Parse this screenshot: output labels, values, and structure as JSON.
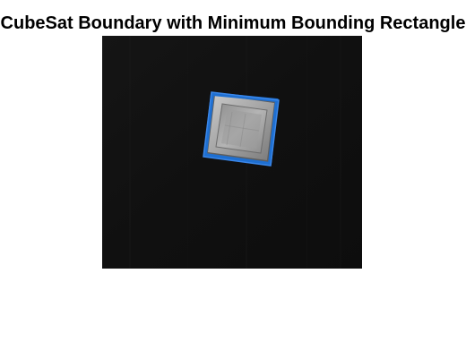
{
  "figure": {
    "title": "CubeSat Boundary with Minimum Bounding Rectangle"
  },
  "image": {
    "subject": "CubeSat",
    "background_color": "#111111",
    "object_color": "#9a9a9a",
    "boundary_color": "#1e6fd1"
  }
}
